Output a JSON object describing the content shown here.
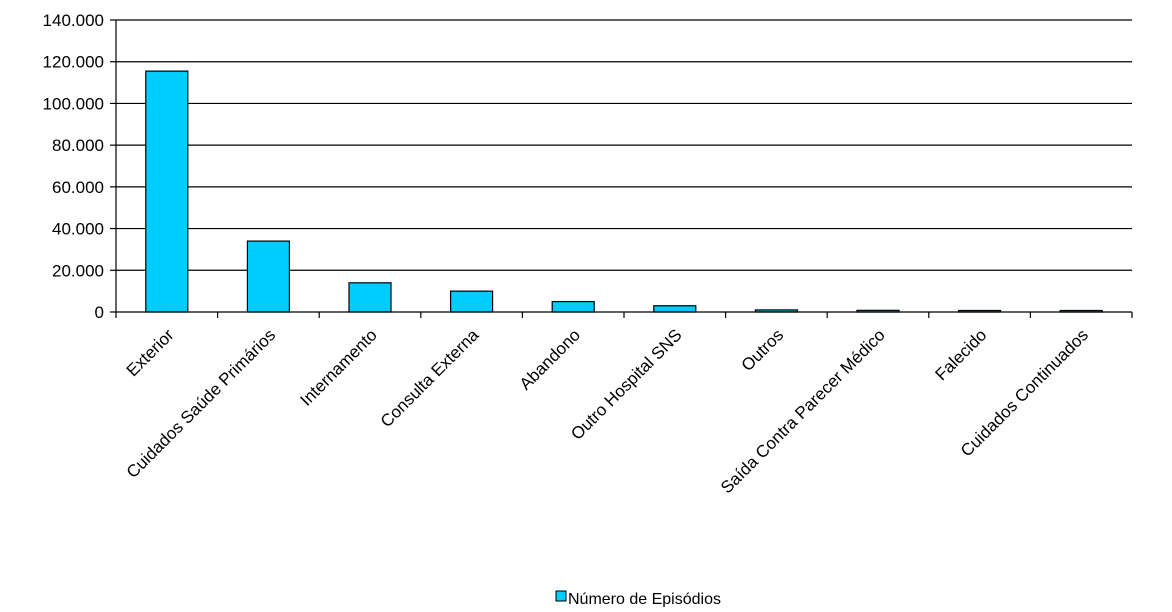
{
  "chart_data": {
    "type": "bar",
    "title": "",
    "xlabel": "",
    "ylabel": "",
    "ylim": [
      0,
      140000
    ],
    "yticks": [
      0,
      20000,
      40000,
      60000,
      80000,
      100000,
      120000,
      140000
    ],
    "ytick_labels": [
      "0",
      "20.000",
      "40.000",
      "60.000",
      "80.000",
      "100.000",
      "120.000",
      "140.000"
    ],
    "grid": true,
    "legend_position": "bottom",
    "categories": [
      "Exterior",
      "Cuidados Saúde Primários",
      "Internamento",
      "Consulta Externa",
      "Abandono",
      "Outro Hospital SNS",
      "Outros",
      "Saída Contra Parecer Médico",
      "Falecido",
      "Cuidados Continuados"
    ],
    "series": [
      {
        "name": "Número de Episódios",
        "color": "#00CCFF",
        "values": [
          115500,
          34000,
          14000,
          10000,
          5000,
          3000,
          1000,
          800,
          700,
          600
        ]
      }
    ]
  }
}
